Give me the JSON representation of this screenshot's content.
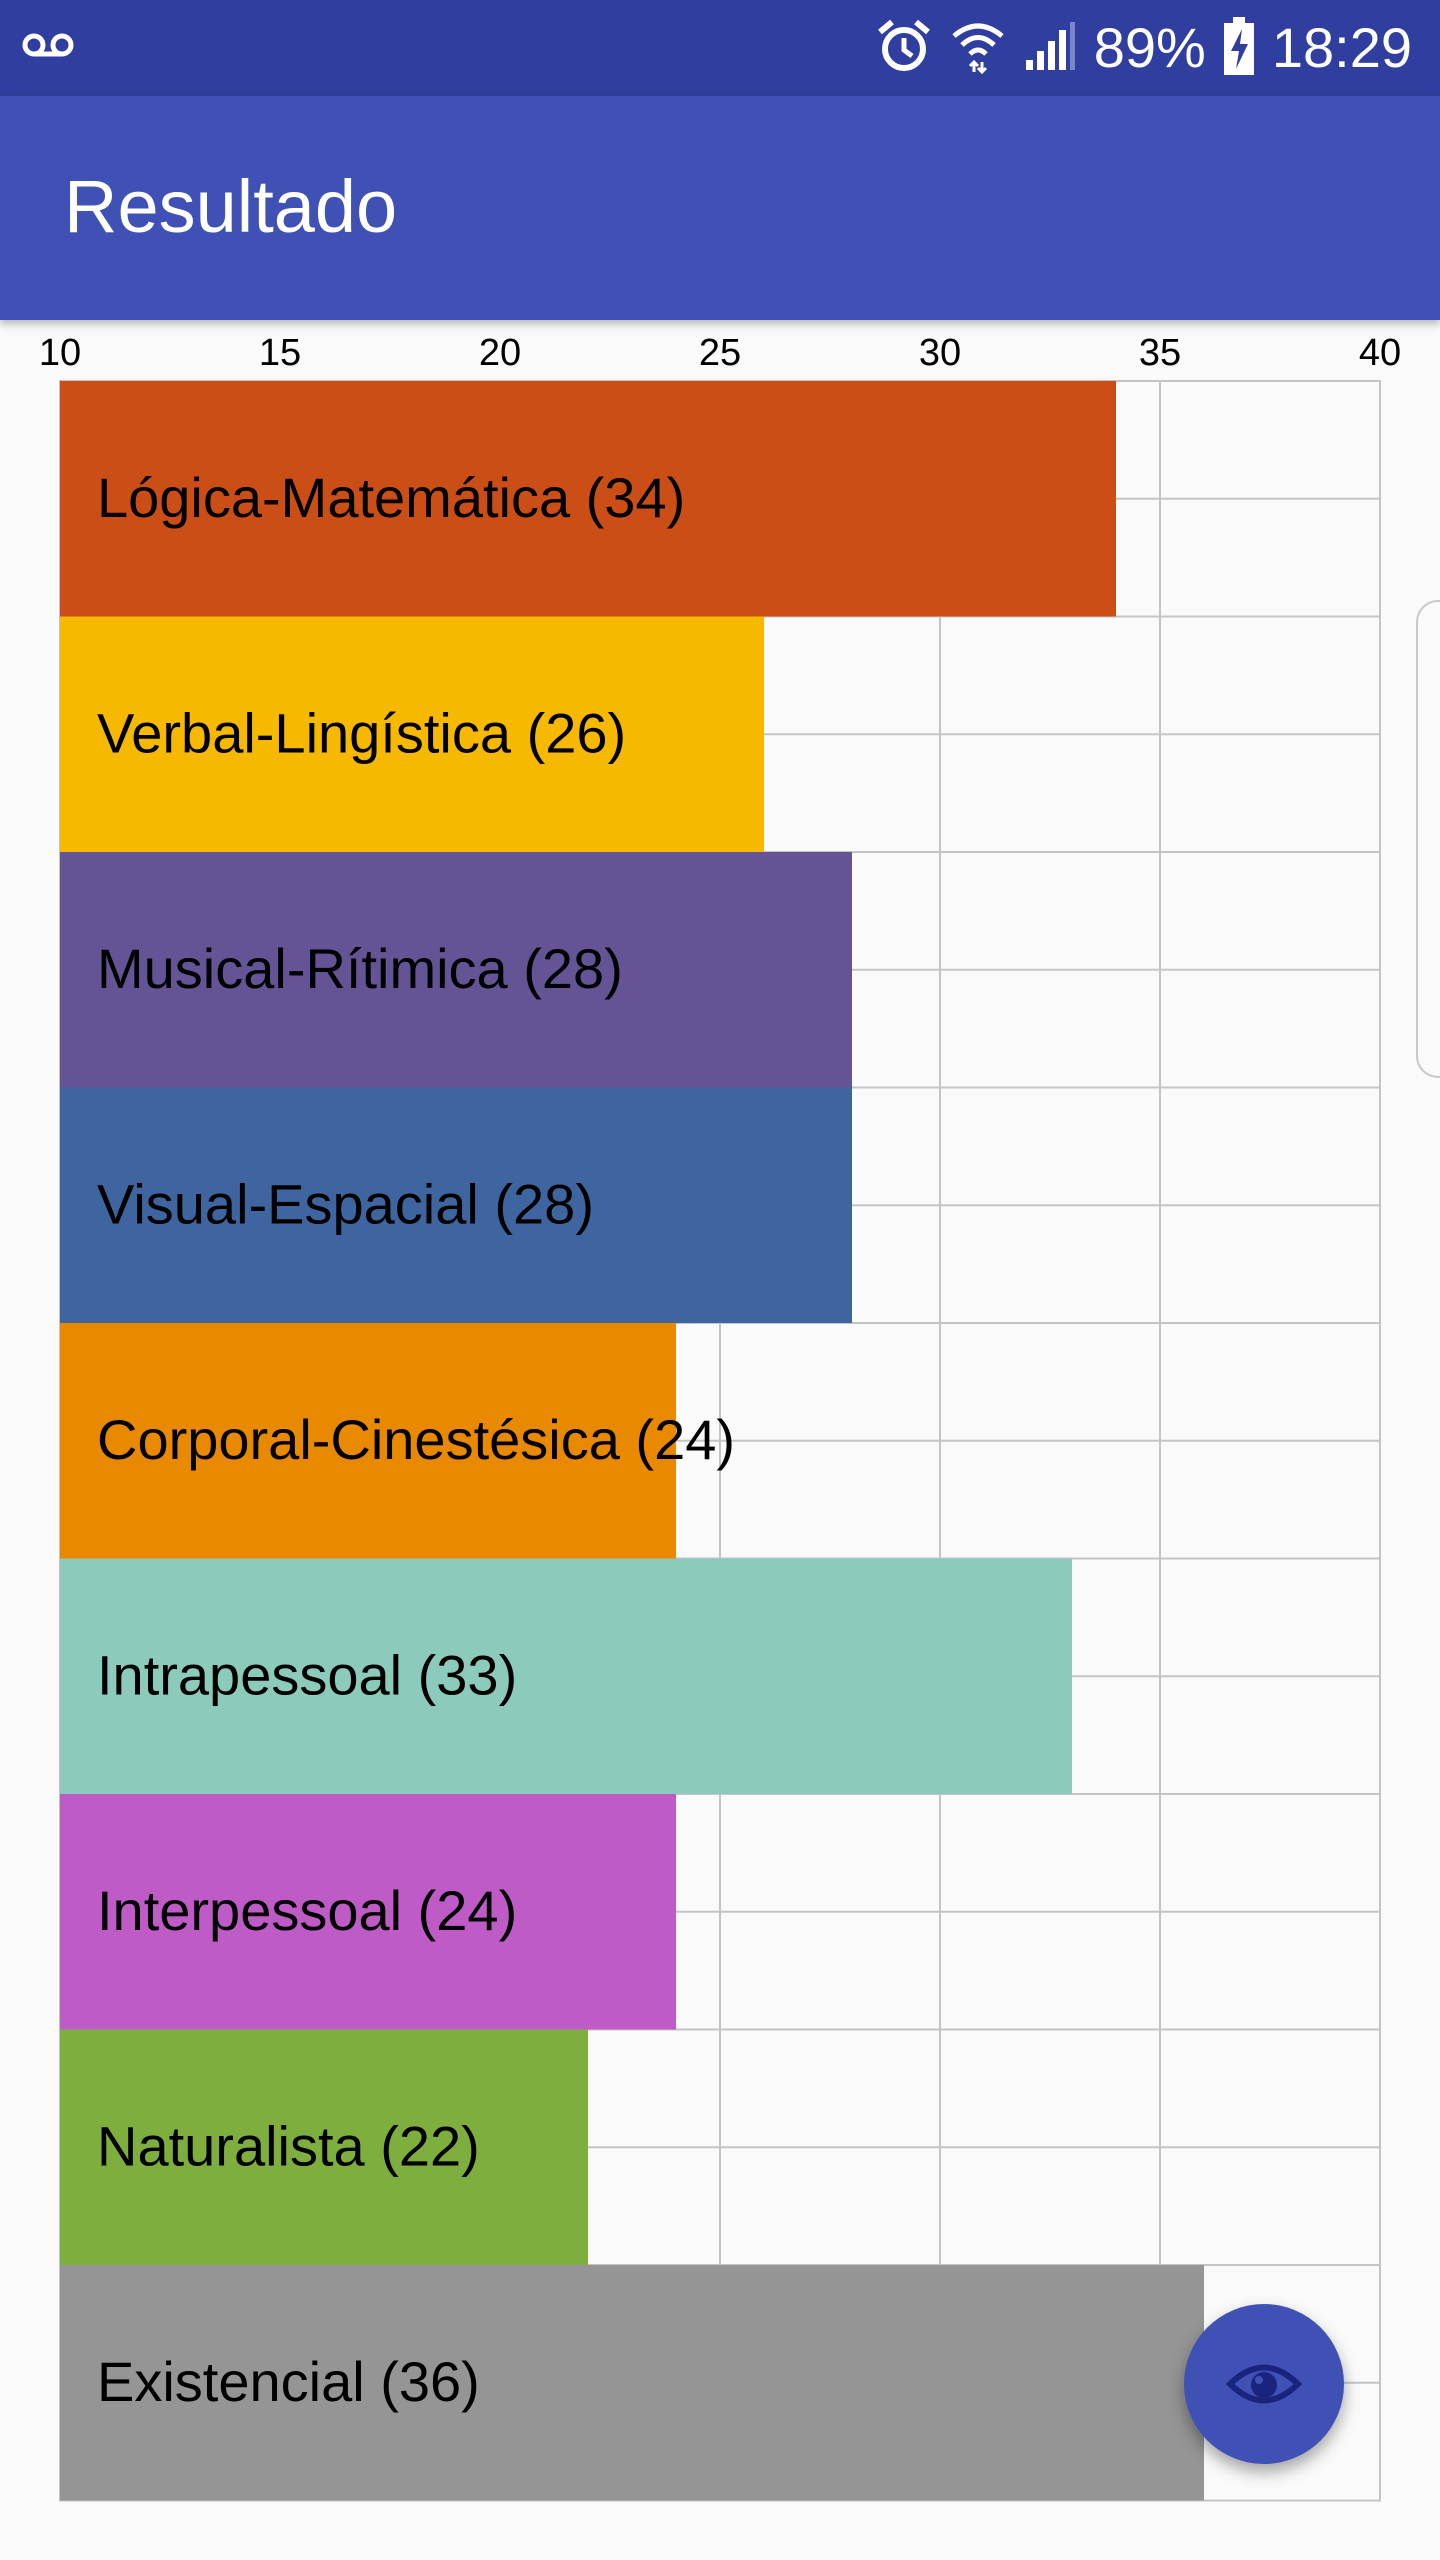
{
  "status_bar": {
    "voicemail_icon": "voicemail-icon",
    "alarm_icon": "alarm-icon",
    "wifi_icon": "wifi-icon",
    "signal_icon": "signal-icon",
    "battery_percent": "89%",
    "battery_icon": "battery-charging-icon",
    "time": "18:29"
  },
  "app_bar": {
    "title": "Resultado"
  },
  "fab": {
    "icon": "eye-icon",
    "color": "#3f51b5"
  },
  "colors": {
    "status_bar": "#303f9f",
    "app_bar": "#3f51b5",
    "background": "#fafafa"
  },
  "chart_data": {
    "type": "bar",
    "orientation": "horizontal",
    "xlim": [
      10,
      40
    ],
    "x_ticks": [
      10,
      15,
      20,
      25,
      30,
      35,
      40
    ],
    "grid": true,
    "categories": [
      "Lógica-Matemática (34)",
      "Verbal-Lingística (26)",
      "Musical-Rítimica (28)",
      "Visual-Espacial (28)",
      "Corporal-Cinestésica (24)",
      "Intrapessoal (33)",
      "Interpessoal (24)",
      "Naturalista (22)",
      "Existencial (36)"
    ],
    "values": [
      34,
      26,
      28,
      28,
      24,
      33,
      24,
      22,
      36
    ],
    "colors": [
      "#cc4e17",
      "#f7b900",
      "#645496",
      "#3e659f",
      "#e88900",
      "#8ccabc",
      "#bf5bc6",
      "#7eae3d",
      "#959595"
    ]
  }
}
